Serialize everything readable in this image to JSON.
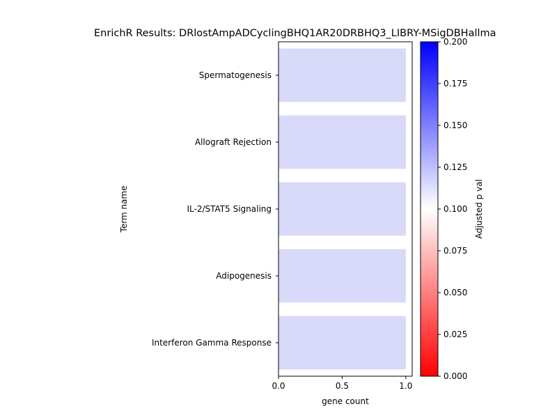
{
  "chart_data": {
    "type": "bar",
    "orientation": "horizontal",
    "title": "EnrichR Results: DRlostAmpADCyclingBHQ1AR20DRBHQ3_LIBRY-MSigDBHallma",
    "xlabel": "gene count",
    "ylabel": "Term name",
    "categories": [
      "Spermatogenesis",
      "Allograft Rejection",
      "IL-2/STAT5 Signaling",
      "Adipogenesis",
      "Interferon Gamma Response"
    ],
    "values": [
      1,
      1,
      1,
      1,
      1
    ],
    "adjusted_p_values": [
      0.12,
      0.12,
      0.12,
      0.12,
      0.12
    ],
    "xlim": [
      0,
      1.05
    ],
    "xticks": [
      "0.0",
      "0.5",
      "1.0"
    ],
    "colorbar": {
      "label": "Adjusted p val",
      "range": [
        0,
        0.2
      ],
      "ticks": [
        "0.000",
        "0.025",
        "0.050",
        "0.075",
        "0.100",
        "0.125",
        "0.150",
        "0.175",
        "0.200"
      ],
      "colormap": "bwr_r",
      "low_color": "#ff0000",
      "mid_color": "#ffffff",
      "high_color": "#0000ff"
    },
    "bar_color": "#d9d9f9",
    "grid": false,
    "legend": "none"
  }
}
